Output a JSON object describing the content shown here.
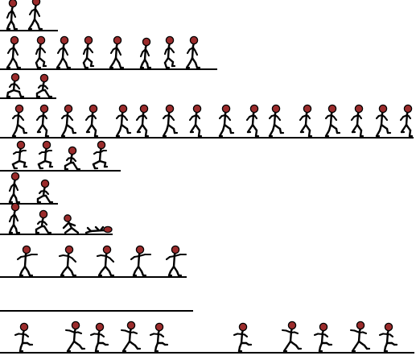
{
  "sprite_sheet": {
    "background": "#ffffff",
    "line_color": "#000000",
    "head_color": "#9b2c2c",
    "rows": [
      {
        "name": "idle",
        "frames": 2
      },
      {
        "name": "walk",
        "frames": 8
      },
      {
        "name": "crouch",
        "frames": 2
      },
      {
        "name": "run",
        "frames": 16
      },
      {
        "name": "jump",
        "frames": 4
      },
      {
        "name": "kneel",
        "frames": 2
      },
      {
        "name": "fall-down",
        "frames": 4
      },
      {
        "name": "punch",
        "frames": 5
      },
      {
        "name": "empty",
        "frames": 0
      },
      {
        "name": "kick-combo",
        "frames": 10
      }
    ]
  }
}
